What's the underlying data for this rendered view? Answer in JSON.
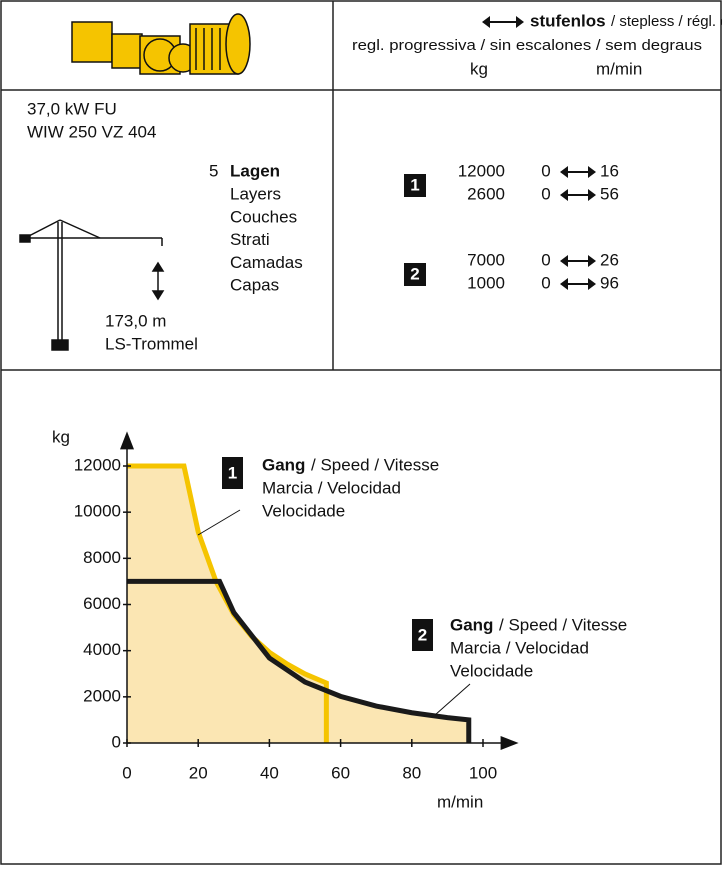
{
  "header": {
    "stufenlos": "stufenlos",
    "languages_1": "/ stepless / régl. continu",
    "languages_2": "regl. progressiva / sin escalones / sem degraus",
    "unit_load": "kg",
    "unit_speed": "m/min"
  },
  "drive": {
    "power": "37,0 kW FU",
    "model": "WIW 250 VZ 404",
    "layers_count": "5",
    "layers_bold": "Lagen",
    "layers_names": [
      "Layers",
      "Couches",
      "Strati",
      "Camadas",
      "Capas"
    ],
    "rope_length": "173,0 m",
    "drum": "LS-Trommel"
  },
  "gears": [
    {
      "label": "1",
      "rows": [
        [
          12000,
          0,
          16
        ],
        [
          2600,
          0,
          56
        ]
      ]
    },
    {
      "label": "2",
      "rows": [
        [
          7000,
          0,
          26
        ],
        [
          1000,
          0,
          96
        ]
      ]
    }
  ],
  "chart_data": {
    "type": "line",
    "x_label": "m/min",
    "y_label": "kg",
    "xlim": [
      0,
      110
    ],
    "ylim": [
      0,
      13500
    ],
    "xticks": [
      0,
      20,
      40,
      60,
      80,
      100
    ],
    "yticks": [
      0,
      2000,
      4000,
      6000,
      8000,
      10000,
      12000
    ],
    "grid": false,
    "fill_color": "#fbe6b3",
    "series": [
      {
        "name": "1",
        "color": "#f5c400",
        "label_bold": "Gang",
        "label_lines": [
          "/ Speed / Vitesse",
          "Marcia / Velocidad",
          "Velocidade"
        ],
        "x": [
          0,
          16,
          20,
          25,
          30,
          35,
          40,
          45,
          50,
          56,
          56
        ],
        "values": [
          12000,
          12000,
          9150,
          7000,
          5570,
          4620,
          3930,
          3420,
          2990,
          2600,
          0
        ]
      },
      {
        "name": "2",
        "color": "#1a1a1a",
        "label_bold": "Gang",
        "label_lines": [
          "/ Speed / Vitesse",
          "Marcia / Velocidad",
          "Velocidade"
        ],
        "x": [
          0,
          26,
          30,
          40,
          50,
          60,
          70,
          80,
          90,
          96,
          96
        ],
        "values": [
          7000,
          7000,
          5650,
          3680,
          2640,
          2020,
          1600,
          1310,
          1100,
          1000,
          0
        ]
      }
    ]
  }
}
